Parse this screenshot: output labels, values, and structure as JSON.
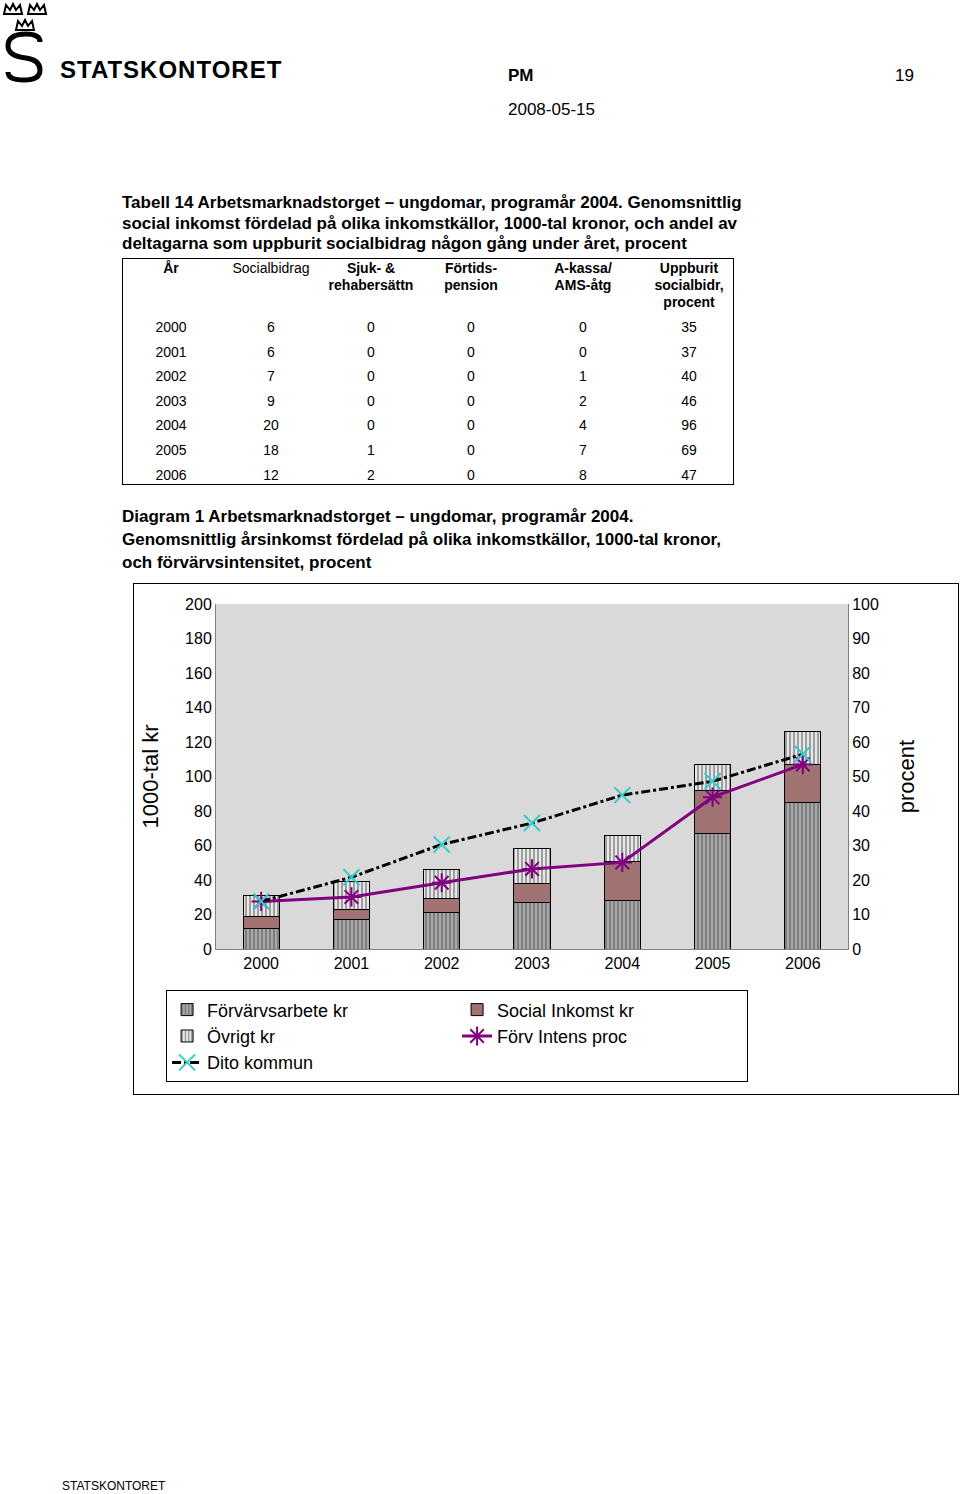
{
  "header": {
    "brand": "STATSKONTORET",
    "doc_type": "PM",
    "page": "19",
    "date": "2008-05-15"
  },
  "table": {
    "title": [
      "Tabell 14 Arbetsmarknadstorget – ungdomar, programår 2004. Genomsnittlig",
      "social inkomst fördelad på olika inkomstkällor, 1000-tal kronor, och andel av",
      "deltagarna som uppburit socialbidrag någon gång under året, procent"
    ],
    "columns": [
      [
        "År"
      ],
      [
        "Socialbidrag"
      ],
      [
        "Sjuk- &",
        "rehabersättn"
      ],
      [
        "Förtids-",
        "pension"
      ],
      [
        "A-kassa/",
        "AMS-åtg"
      ],
      [
        "Uppburit",
        "socialbidr,",
        "procent"
      ]
    ],
    "rows": [
      [
        "2000",
        "6",
        "0",
        "0",
        "0",
        "35"
      ],
      [
        "2001",
        "6",
        "0",
        "0",
        "0",
        "37"
      ],
      [
        "2002",
        "7",
        "0",
        "0",
        "1",
        "40"
      ],
      [
        "2003",
        "9",
        "0",
        "0",
        "2",
        "46"
      ],
      [
        "2004",
        "20",
        "0",
        "0",
        "4",
        "96"
      ],
      [
        "2005",
        "18",
        "1",
        "0",
        "7",
        "69"
      ],
      [
        "2006",
        "12",
        "2",
        "0",
        "8",
        "47"
      ]
    ]
  },
  "diagram_title": [
    "Diagram 1 Arbetsmarknadstorget – ungdomar, programår 2004.",
    "Genomsnittlig årsinkomst fördelad på olika inkomstkällor, 1000-tal kronor,",
    "och förvärvsintensitet, procent"
  ],
  "chart_data": {
    "type": "bar",
    "stacked": true,
    "grid": false,
    "legend": "bottom",
    "y_label": "1000-tal kr",
    "y2_label": "procent",
    "categories": [
      "2000",
      "2001",
      "2002",
      "2003",
      "2004",
      "2005",
      "2006"
    ],
    "ylim": [
      0,
      200
    ],
    "yticks": [
      0,
      20,
      40,
      60,
      80,
      100,
      120,
      140,
      160,
      180,
      200
    ],
    "y2lim": [
      0,
      100
    ],
    "y2ticks": [
      0,
      10,
      20,
      30,
      40,
      50,
      60,
      70,
      80,
      90,
      100
    ],
    "series": [
      {
        "name": "Förvärvsarbete kr",
        "type": "bar",
        "color": "#a8a8a8",
        "marker": "hatch",
        "values": [
          12,
          17,
          21,
          27,
          28,
          67,
          85
        ]
      },
      {
        "name": "Social Inkomst kr",
        "type": "bar",
        "color": "#a07272",
        "values": [
          7,
          6,
          8,
          11,
          23,
          25,
          22
        ]
      },
      {
        "name": "Övrigt kr",
        "type": "bar",
        "color": "#e8e8e8",
        "marker": "hatch",
        "values": [
          12,
          16,
          17,
          20,
          15,
          15,
          19
        ]
      },
      {
        "name": "Förv Intens proc",
        "type": "line",
        "axis": "y2",
        "color": "#800080",
        "marker": "asterisk",
        "line_style": "solid",
        "values": [
          13.8,
          15.1,
          19.2,
          23.2,
          25.1,
          44,
          53.5
        ]
      },
      {
        "name": "Dito kommun",
        "type": "line",
        "axis": "y2",
        "color": "#000000",
        "marker": "x",
        "line_style": "dashdot",
        "values": [
          13.8,
          20.8,
          30.3,
          36.5,
          44.6,
          48.6,
          56.5
        ]
      }
    ]
  },
  "footer": "STATSKONTORET"
}
